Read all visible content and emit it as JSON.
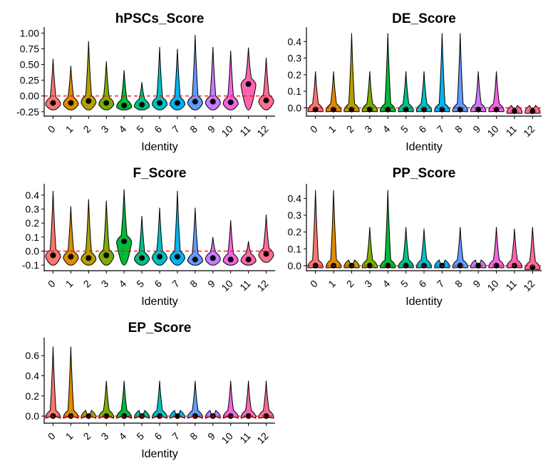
{
  "chart_data": [
    {
      "type": "violin",
      "title": "hPSCs_Score",
      "xlabel": "Identity",
      "ylabel": "",
      "categories": [
        "0",
        "1",
        "2",
        "3",
        "4",
        "5",
        "6",
        "7",
        "8",
        "9",
        "10",
        "11",
        "12"
      ],
      "yticks": [
        "1.00",
        "0.75",
        "0.50",
        "0.25",
        "0.00",
        "-0.25"
      ],
      "ylim": [
        -0.32,
        1.05
      ],
      "reference_line": 0.0,
      "medians": [
        -0.11,
        -0.11,
        -0.08,
        -0.11,
        -0.15,
        -0.14,
        -0.11,
        -0.11,
        -0.09,
        -0.09,
        -0.1,
        0.19,
        -0.07
      ],
      "max": [
        0.59,
        0.48,
        0.87,
        0.55,
        0.41,
        0.22,
        0.78,
        0.75,
        0.97,
        0.78,
        0.72,
        0.77,
        0.61
      ],
      "min": [
        -0.22,
        -0.22,
        -0.22,
        -0.22,
        -0.22,
        -0.22,
        -0.22,
        -0.22,
        -0.22,
        -0.22,
        -0.22,
        -0.22,
        -0.22
      ]
    },
    {
      "type": "violin",
      "title": "DE_Score",
      "xlabel": "Identity",
      "ylabel": "",
      "categories": [
        "0",
        "1",
        "2",
        "3",
        "4",
        "5",
        "6",
        "7",
        "8",
        "9",
        "10",
        "11",
        "12"
      ],
      "yticks": [
        "0.4",
        "0.3",
        "0.2",
        "0.1",
        "0.0"
      ],
      "ylim": [
        -0.05,
        0.47
      ],
      "reference_line": 0.0,
      "medians": [
        -0.01,
        -0.01,
        -0.01,
        -0.01,
        -0.01,
        -0.01,
        -0.01,
        -0.01,
        -0.01,
        -0.01,
        -0.01,
        -0.02,
        -0.02
      ],
      "max": [
        0.22,
        0.22,
        0.45,
        0.22,
        0.45,
        0.22,
        0.22,
        0.45,
        0.45,
        0.22,
        0.22,
        0.0,
        0.0
      ],
      "min": [
        -0.02,
        -0.02,
        -0.02,
        -0.02,
        -0.02,
        -0.02,
        -0.02,
        -0.02,
        -0.02,
        -0.02,
        -0.02,
        -0.03,
        -0.03
      ]
    },
    {
      "type": "violin",
      "title": "F_Score",
      "xlabel": "Identity",
      "ylabel": "",
      "categories": [
        "0",
        "1",
        "2",
        "3",
        "4",
        "5",
        "6",
        "7",
        "8",
        "9",
        "10",
        "11",
        "12"
      ],
      "yticks": [
        "0.4",
        "0.3",
        "0.2",
        "0.1",
        "0.0",
        "-0.1"
      ],
      "ylim": [
        -0.14,
        0.46
      ],
      "reference_line": 0.0,
      "medians": [
        -0.03,
        -0.04,
        -0.05,
        -0.03,
        0.07,
        -0.05,
        -0.04,
        -0.04,
        -0.06,
        -0.05,
        -0.06,
        -0.06,
        -0.02
      ],
      "max": [
        0.43,
        0.32,
        0.37,
        0.36,
        0.44,
        0.25,
        0.31,
        0.43,
        0.31,
        0.1,
        0.22,
        0.07,
        0.26
      ],
      "min": [
        -0.1,
        -0.1,
        -0.1,
        -0.1,
        -0.1,
        -0.1,
        -0.1,
        -0.1,
        -0.1,
        -0.1,
        -0.1,
        -0.1,
        -0.08
      ]
    },
    {
      "type": "violin",
      "title": "PP_Score",
      "xlabel": "Identity",
      "ylabel": "",
      "categories": [
        "0",
        "1",
        "2",
        "3",
        "4",
        "5",
        "6",
        "7",
        "8",
        "9",
        "10",
        "11",
        "12"
      ],
      "yticks": [
        "0.4",
        "0.3",
        "0.2",
        "0.1",
        "0.0"
      ],
      "ylim": [
        -0.03,
        0.47
      ],
      "reference_line": 0.0,
      "medians": [
        0.0,
        0.0,
        0.0,
        0.0,
        0.0,
        0.0,
        0.0,
        0.0,
        0.0,
        0.0,
        0.0,
        0.0,
        -0.01
      ],
      "max": [
        0.45,
        0.45,
        0.0,
        0.23,
        0.45,
        0.23,
        0.22,
        0.0,
        0.23,
        0.0,
        0.23,
        0.22,
        0.23
      ],
      "min": [
        -0.01,
        -0.01,
        -0.01,
        -0.01,
        -0.01,
        -0.01,
        -0.01,
        -0.01,
        -0.01,
        -0.01,
        -0.01,
        -0.01,
        -0.02
      ]
    },
    {
      "type": "violin",
      "title": "EP_Score",
      "xlabel": "Identity",
      "ylabel": "",
      "categories": [
        "0",
        "1",
        "2",
        "3",
        "4",
        "5",
        "6",
        "7",
        "8",
        "9",
        "10",
        "11",
        "12"
      ],
      "yticks": [
        "0.6",
        "0.4",
        "0.2",
        "0.0"
      ],
      "ylim": [
        -0.07,
        0.75
      ],
      "reference_line": 0.0,
      "medians": [
        0.0,
        0.0,
        0.0,
        0.0,
        0.0,
        0.0,
        0.0,
        0.0,
        0.0,
        0.0,
        0.0,
        0.0,
        0.0
      ],
      "max": [
        0.69,
        0.69,
        0.0,
        0.35,
        0.35,
        0.0,
        0.35,
        0.0,
        0.35,
        0.0,
        0.35,
        0.35,
        0.35
      ],
      "min": [
        0.0,
        0.0,
        0.0,
        0.0,
        0.0,
        0.0,
        0.0,
        0.0,
        0.0,
        0.0,
        0.0,
        0.0,
        -0.01
      ]
    }
  ],
  "colors": [
    "#F8766D",
    "#DE8C00",
    "#B79F00",
    "#7CAE00",
    "#00BA38",
    "#00C08B",
    "#00BFC4",
    "#00B4F0",
    "#619CFF",
    "#C77CFF",
    "#F564E3",
    "#FF64B0",
    "#FF6C91"
  ]
}
